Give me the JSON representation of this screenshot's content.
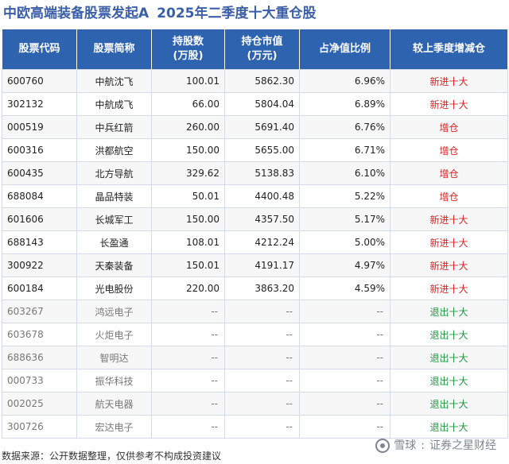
{
  "title": {
    "main": "中欧高端装备股票发起A",
    "sub": "2025年二季度十大重仓股"
  },
  "table": {
    "headers": {
      "code": "股票代码",
      "name": "股票简称",
      "shares_l1": "持股数",
      "shares_l2": "(万股)",
      "value_l1": "持仓市值",
      "value_l2": "(万元)",
      "ratio": "占净值比例",
      "change": "较上季度增减仓"
    },
    "rows": [
      {
        "code": "600760",
        "name": "中航沈飞",
        "shares": "100.01",
        "value": "5862.30",
        "ratio": "6.96%",
        "change": "新进十大"
      },
      {
        "code": "302132",
        "name": "中航成飞",
        "shares": "66.00",
        "value": "5804.04",
        "ratio": "6.89%",
        "change": "新进十大"
      },
      {
        "code": "000519",
        "name": "中兵红箭",
        "shares": "260.00",
        "value": "5691.40",
        "ratio": "6.76%",
        "change": "增仓"
      },
      {
        "code": "600316",
        "name": "洪都航空",
        "shares": "150.00",
        "value": "5655.00",
        "ratio": "6.71%",
        "change": "增仓"
      },
      {
        "code": "600435",
        "name": "北方导航",
        "shares": "329.62",
        "value": "5138.83",
        "ratio": "6.10%",
        "change": "增仓"
      },
      {
        "code": "688084",
        "name": "晶品特装",
        "shares": "50.01",
        "value": "4400.48",
        "ratio": "5.22%",
        "change": "增仓"
      },
      {
        "code": "601606",
        "name": "长城军工",
        "shares": "150.00",
        "value": "4357.50",
        "ratio": "5.17%",
        "change": "新进十大"
      },
      {
        "code": "688143",
        "name": "长盈通",
        "shares": "108.01",
        "value": "4212.24",
        "ratio": "5.00%",
        "change": "新进十大"
      },
      {
        "code": "300922",
        "name": "天秦装备",
        "shares": "150.01",
        "value": "4191.17",
        "ratio": "4.97%",
        "change": "新进十大"
      },
      {
        "code": "600184",
        "name": "光电股份",
        "shares": "220.00",
        "value": "3863.20",
        "ratio": "4.59%",
        "change": "新进十大"
      },
      {
        "code": "603267",
        "name": "鸿远电子",
        "shares": "--",
        "value": "--",
        "ratio": "--",
        "change": "退出十大"
      },
      {
        "code": "603678",
        "name": "火炬电子",
        "shares": "--",
        "value": "--",
        "ratio": "--",
        "change": "退出十大"
      },
      {
        "code": "688636",
        "name": "智明达",
        "shares": "--",
        "value": "--",
        "ratio": "--",
        "change": "退出十大"
      },
      {
        "code": "000733",
        "name": "振华科技",
        "shares": "--",
        "value": "--",
        "ratio": "--",
        "change": "退出十大"
      },
      {
        "code": "002025",
        "name": "航天电器",
        "shares": "--",
        "value": "--",
        "ratio": "--",
        "change": "退出十大"
      },
      {
        "code": "300726",
        "name": "宏达电子",
        "shares": "--",
        "value": "--",
        "ratio": "--",
        "change": "退出十大"
      }
    ],
    "change_colors": {
      "新进十大": "#e02020",
      "增仓": "#e02020",
      "退出十大": "#1a9a3c"
    }
  },
  "footer": {
    "source": "数据来源：公开数据整理，仅供参考不构成投资建议"
  },
  "brand": {
    "icon": "snowball-logo-icon",
    "name": "雪球",
    "separator": ":",
    "account": "证券之星财经"
  },
  "colors": {
    "title": "#3a5fa8",
    "header_bg": "#2e63b0",
    "increase": "#e02020",
    "exit": "#1a9a3c"
  }
}
